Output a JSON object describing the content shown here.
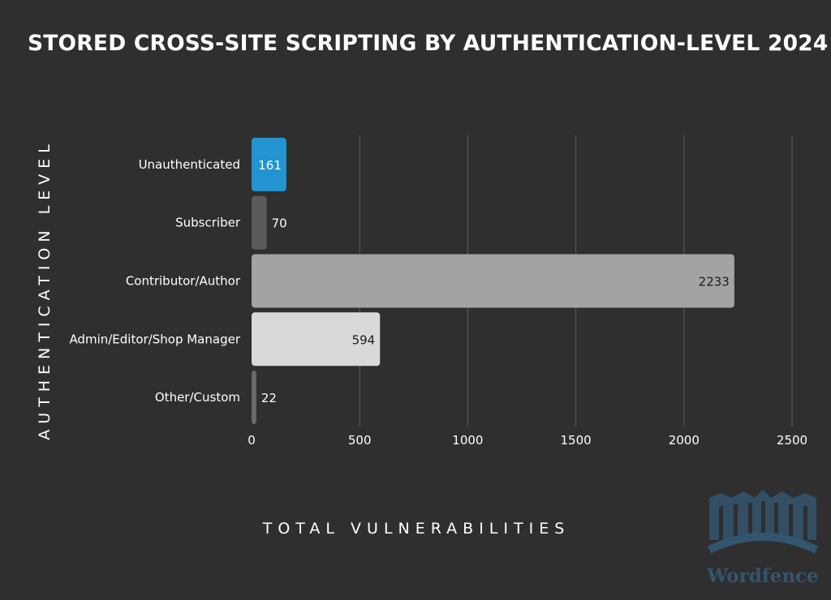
{
  "chart_data": {
    "type": "bar",
    "orientation": "horizontal",
    "title": "STORED CROSS-SITE SCRIPTING BY AUTHENTICATION-LEVEL 2024",
    "xlabel": "TOTAL VULNERABILITIES",
    "ylabel": "AUTHENTICATION LEVEL",
    "categories": [
      "Unauthenticated",
      "Subscriber",
      "Contributor/Author",
      "Admin/Editor/Shop Manager",
      "Other/Custom"
    ],
    "values": [
      161,
      70,
      2233,
      594,
      22
    ],
    "xlim": [
      0,
      2500
    ],
    "xticks": [
      0,
      500,
      1000,
      1500,
      2000,
      2500
    ],
    "grid": "vertical",
    "bar_colors": [
      "#2494d0",
      "#5a5a5a",
      "#a3a3a3",
      "#d9d9d9",
      "#6a6a6a"
    ],
    "label_colors": [
      "#ffffff",
      "#ffffff",
      "#1a1a1a",
      "#1a1a1a",
      "#ffffff"
    ]
  },
  "logo": {
    "text": "Wordfence",
    "color": "#33556e"
  }
}
